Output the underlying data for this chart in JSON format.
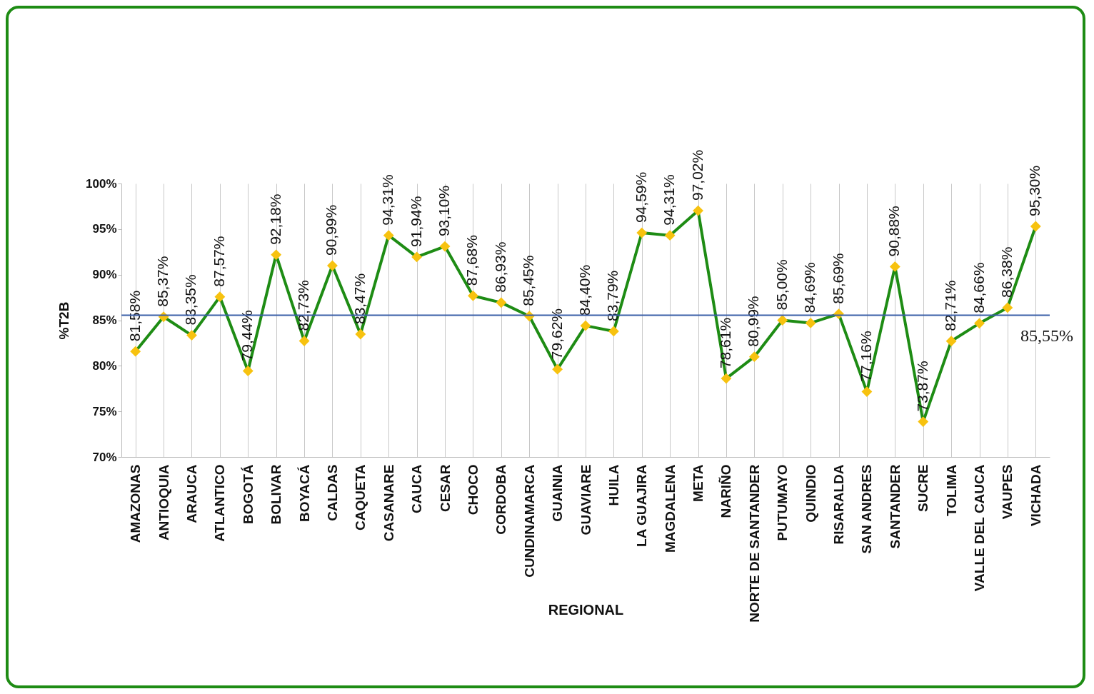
{
  "chart_data": {
    "type": "line",
    "xlabel": "REGIONAL",
    "ylabel": "%T2B",
    "categories": [
      "AMAZONAS",
      "ANTIOQUIA",
      "ARAUCA",
      "ATLANTICO",
      "BOGOTÁ",
      "BOLIVAR",
      "BOYACÁ",
      "CALDAS",
      "CAQUETA",
      "CASANARE",
      "CAUCA",
      "CESAR",
      "CHOCO",
      "CORDOBA",
      "CUNDINAMARCA",
      "GUAINIA",
      "GUAVIARE",
      "HUILA",
      "LA GUAJIRA",
      "MAGDALENA",
      "META",
      "NARIÑO",
      "NORTE DE SANTANDER",
      "PUTUMAYO",
      "QUINDIO",
      "RISARALDA",
      "SAN ANDRES",
      "SANTANDER",
      "SUCRE",
      "TOLIMA",
      "VALLE DEL CAUCA",
      "VAUPES",
      "VICHADA"
    ],
    "series": [
      {
        "color": "#1e8c14",
        "values": [
          81.58,
          85.37,
          83.35,
          87.57,
          79.44,
          92.18,
          82.73,
          90.99,
          83.47,
          94.31,
          91.94,
          93.1,
          87.68,
          86.93,
          85.45,
          79.62,
          84.4,
          83.79,
          94.59,
          94.31,
          97.02,
          78.61,
          80.99,
          85.0,
          84.69,
          85.69,
          77.16,
          90.88,
          73.87,
          82.71,
          84.66,
          86.38,
          95.3
        ],
        "value_labels": [
          "81,58%",
          "85,37%",
          "83,35%",
          "87,57%",
          "79,44%",
          "92,18%",
          "82,73%",
          "90,99%",
          "83,47%",
          "94,31%",
          "91,94%",
          "93,10%",
          "87,68%",
          "86,93%",
          "85,45%",
          "79,62%",
          "84,40%",
          "83,79%",
          "94,59%",
          "94,31%",
          "97,02%",
          "78,61%",
          "80,99%",
          "85,00%",
          "84,69%",
          "85,69%",
          "77,16%",
          "90,88%",
          "73,87%",
          "82,71%",
          "84,66%",
          "86,38%",
          "95,30%"
        ]
      }
    ],
    "ylim": [
      70,
      100
    ],
    "yticks": [
      {
        "value": 70,
        "label": "70%"
      },
      {
        "value": 75,
        "label": "75%"
      },
      {
        "value": 80,
        "label": "80%"
      },
      {
        "value": 85,
        "label": "85%"
      },
      {
        "value": 90,
        "label": "90%"
      },
      {
        "value": 95,
        "label": "95%"
      },
      {
        "value": 100,
        "label": "100%"
      }
    ],
    "ref_lines": [
      {
        "axis": "y",
        "value": 85.55,
        "label": "85,55%",
        "color": "#3a5ea8"
      }
    ],
    "grid": "x",
    "marker": "diamond",
    "line_style": "solid"
  }
}
